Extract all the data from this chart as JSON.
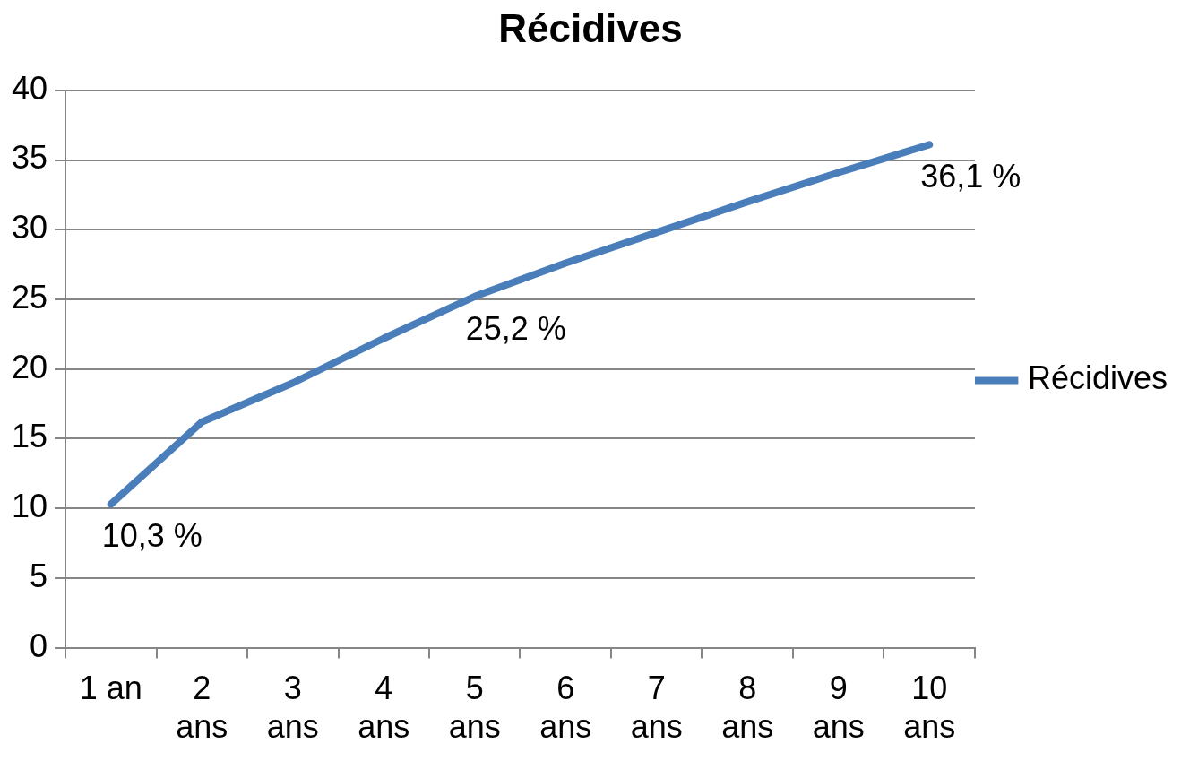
{
  "chart_data": {
    "type": "line",
    "title": "Récidives",
    "categories": [
      "1 an",
      "2 ans",
      "3 ans",
      "4 ans",
      "5 ans",
      "6 ans",
      "7 ans",
      "8 ans",
      "9 ans",
      "10 ans"
    ],
    "series": [
      {
        "name": "Récidives",
        "color": "#4a7ebb",
        "values": [
          10.3,
          16.2,
          19.0,
          22.2,
          25.2,
          27.6,
          29.8,
          32.0,
          34.1,
          36.1
        ],
        "value_labels": [
          "10,3 %",
          null,
          null,
          null,
          "25,2 %",
          null,
          null,
          null,
          null,
          "36,1 %"
        ]
      }
    ],
    "ylim": [
      0,
      40
    ],
    "yticks": [
      0,
      5,
      10,
      15,
      20,
      25,
      30,
      35,
      40
    ],
    "grid": "y",
    "legend": "right",
    "marker": "none",
    "line_style": "solid"
  }
}
